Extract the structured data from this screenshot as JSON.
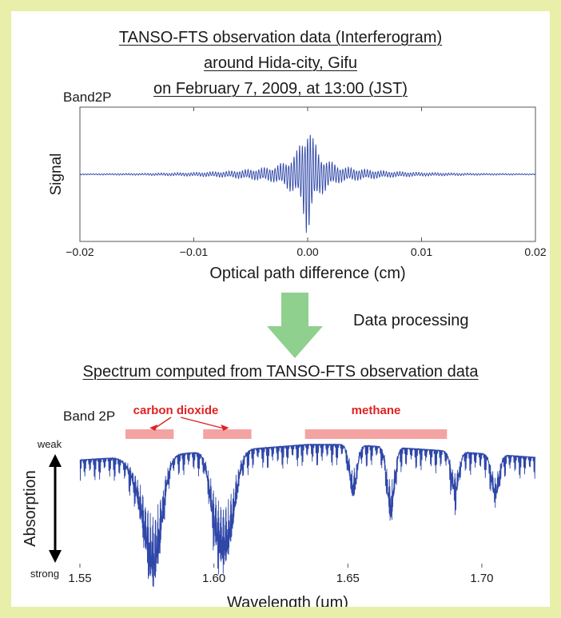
{
  "figure": {
    "title_lines": [
      "TANSO-FTS observation data (Interferogram)",
      "around Hida-city, Gifu",
      "on February 7, 2009, at 13:00 (JST)"
    ],
    "process_label": "Data processing",
    "spectrum_title": "Spectrum computed from TANSO-FTS observation data",
    "colors": {
      "border": "#e9efa9",
      "trace": "#2f47a8",
      "arrow": "#8fd08f",
      "band": "#f4a3a3",
      "annotation": "#e02222"
    }
  },
  "chart_data": [
    {
      "type": "line",
      "panel_label": "Band2P",
      "xlabel": "Optical path difference (cm)",
      "ylabel": "Signal",
      "xlim": [
        -0.02,
        0.02
      ],
      "xticks": [
        -0.02,
        -0.01,
        0.0,
        0.01,
        0.02
      ],
      "xtick_labels": [
        "−0.02",
        "−0.01",
        "0.00",
        "0.01",
        "0.02"
      ],
      "y_ticks_shown": false,
      "baseline": 0,
      "envelope_x": [
        -0.02,
        -0.015,
        -0.01,
        -0.007,
        -0.005,
        -0.003,
        -0.002,
        -0.001,
        -0.0005,
        0,
        0.0005,
        0.001,
        0.002,
        0.003,
        0.005,
        0.007,
        0.01,
        0.015,
        0.02
      ],
      "envelope_amp": [
        0.01,
        0.015,
        0.03,
        0.05,
        0.08,
        0.12,
        0.2,
        0.35,
        0.55,
        1.0,
        0.55,
        0.35,
        0.2,
        0.12,
        0.08,
        0.05,
        0.03,
        0.015,
        0.01
      ],
      "peak_positive": 1.0,
      "peak_negative": -1.0
    },
    {
      "type": "line",
      "panel_label": "Band 2P",
      "xlabel": "Wavelength (μm)",
      "ylabel": "Absorption",
      "y_scale_labels": {
        "top": "weak",
        "bottom": "strong"
      },
      "xlim": [
        1.55,
        1.72
      ],
      "xticks": [
        1.55,
        1.6,
        1.65,
        1.7
      ],
      "xtick_labels": [
        "1.55",
        "1.60",
        "1.65",
        "1.70"
      ],
      "y_ticks_shown": false,
      "continuum_x": [
        1.55,
        1.58,
        1.61,
        1.635,
        1.65,
        1.68,
        1.72
      ],
      "continuum_y": [
        0.82,
        0.86,
        0.9,
        0.94,
        0.94,
        0.9,
        0.84
      ],
      "absorption_lines": [
        {
          "center": 1.575,
          "depth": 0.45,
          "width": 0.006
        },
        {
          "center": 1.578,
          "depth": 0.6,
          "width": 0.004
        },
        {
          "center": 1.603,
          "depth": 0.5,
          "width": 0.004
        },
        {
          "center": 1.606,
          "depth": 0.45,
          "width": 0.004
        },
        {
          "center": 1.6,
          "depth": 0.3,
          "width": 0.003
        },
        {
          "center": 1.652,
          "depth": 0.4,
          "width": 0.002
        },
        {
          "center": 1.666,
          "depth": 0.55,
          "width": 0.002
        },
        {
          "center": 1.69,
          "depth": 0.35,
          "width": 0.002
        },
        {
          "center": 1.705,
          "depth": 0.35,
          "width": 0.002
        }
      ],
      "annotations": [
        {
          "label": "carbon dioxide",
          "bands": [
            [
              1.567,
              1.585
            ],
            [
              1.596,
              1.614
            ]
          ]
        },
        {
          "label": "methane",
          "bands": [
            [
              1.634,
              1.687
            ]
          ]
        }
      ]
    }
  ]
}
